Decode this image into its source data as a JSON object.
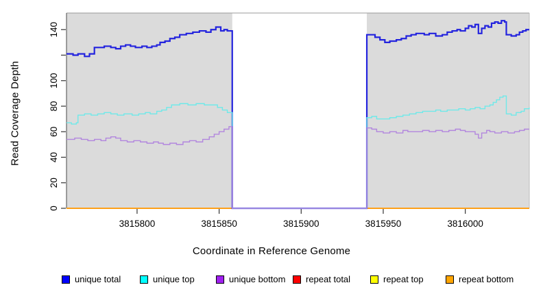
{
  "chart_data": {
    "type": "line",
    "step": true,
    "title": "",
    "xlabel": "Coordinate in Reference Genome",
    "ylabel": "Read Coverage Depth",
    "xlim": [
      3815757,
      3816039
    ],
    "ylim": [
      0,
      153
    ],
    "grid": false,
    "plot_background_shaded_color": "#DBDBDB",
    "gap_region_color": "#FFFFFF",
    "shaded_regions": [
      [
        3815757,
        3815858
      ],
      [
        3815940,
        3816039
      ]
    ],
    "gap_region": [
      3815858,
      3815940
    ],
    "x_ticks": [
      3815800,
      3815850,
      3815900,
      3815950,
      3816000
    ],
    "x_tick_labels": [
      "3815800",
      "3815850",
      "3815900",
      "3815950",
      "3816000"
    ],
    "y_ticks": [
      0,
      20,
      40,
      60,
      80,
      100,
      120,
      140
    ],
    "y_tick_labels": [
      "0",
      "20",
      "40",
      "60",
      "80",
      "100",
      "",
      "140"
    ],
    "legend_position": "bottom",
    "legend": [
      {
        "label": "unique total",
        "color": "#0000FF"
      },
      {
        "label": "unique top",
        "color": "#00FFFF"
      },
      {
        "label": "unique bottom",
        "color": "#A020F0"
      },
      {
        "label": "repeat total",
        "color": "#FF0000"
      },
      {
        "label": "repeat top",
        "color": "#FFFF00"
      },
      {
        "label": "repeat bottom",
        "color": "#FFA500"
      }
    ],
    "series": [
      {
        "name": "repeat total",
        "color": "#DE0000",
        "width": 1.2,
        "points": [
          [
            3815757,
            0
          ],
          [
            3816039,
            0
          ]
        ]
      },
      {
        "name": "repeat top",
        "color": "#F0F000",
        "width": 1.2,
        "points": [
          [
            3815757,
            0
          ],
          [
            3816039,
            0
          ]
        ]
      },
      {
        "name": "repeat bottom",
        "color": "#FFA018",
        "width": 2,
        "points": [
          [
            3815757,
            0
          ],
          [
            3816039,
            0
          ]
        ]
      },
      {
        "name": "unique total",
        "color": "#2323DE",
        "width": 2.2,
        "points": [
          [
            3815757,
            121
          ],
          [
            3815761,
            120
          ],
          [
            3815764,
            121
          ],
          [
            3815768,
            119
          ],
          [
            3815771,
            121
          ],
          [
            3815774,
            126
          ],
          [
            3815780,
            127
          ],
          [
            3815784,
            126
          ],
          [
            3815787,
            125
          ],
          [
            3815790,
            127
          ],
          [
            3815793,
            128
          ],
          [
            3815796,
            127
          ],
          [
            3815799,
            126
          ],
          [
            3815803,
            127
          ],
          [
            3815806,
            126
          ],
          [
            3815809,
            127
          ],
          [
            3815812,
            128
          ],
          [
            3815814,
            130
          ],
          [
            3815817,
            131
          ],
          [
            3815820,
            133
          ],
          [
            3815823,
            134
          ],
          [
            3815826,
            136
          ],
          [
            3815830,
            137
          ],
          [
            3815834,
            138
          ],
          [
            3815838,
            139
          ],
          [
            3815842,
            138
          ],
          [
            3815845,
            140
          ],
          [
            3815848,
            142
          ],
          [
            3815851,
            139
          ],
          [
            3815853,
            140
          ],
          [
            3815855,
            139
          ],
          [
            3815858,
            0
          ],
          [
            3815940,
            136
          ],
          [
            3815945,
            134
          ],
          [
            3815948,
            132
          ],
          [
            3815951,
            130
          ],
          [
            3815954,
            131
          ],
          [
            3815958,
            132
          ],
          [
            3815961,
            133
          ],
          [
            3815964,
            135
          ],
          [
            3815967,
            136
          ],
          [
            3815970,
            137
          ],
          [
            3815975,
            136
          ],
          [
            3815978,
            137
          ],
          [
            3815982,
            135
          ],
          [
            3815986,
            136
          ],
          [
            3815989,
            138
          ],
          [
            3815992,
            139
          ],
          [
            3815995,
            140
          ],
          [
            3815997,
            139
          ],
          [
            3816000,
            141
          ],
          [
            3816002,
            143
          ],
          [
            3816004,
            142
          ],
          [
            3816006,
            144
          ],
          [
            3816008,
            137
          ],
          [
            3816010,
            141
          ],
          [
            3816012,
            143
          ],
          [
            3816014,
            142
          ],
          [
            3816016,
            145
          ],
          [
            3816018,
            146
          ],
          [
            3816020,
            145
          ],
          [
            3816022,
            147
          ],
          [
            3816024,
            146
          ],
          [
            3816025,
            136
          ],
          [
            3816028,
            135
          ],
          [
            3816031,
            136
          ],
          [
            3816033,
            138
          ],
          [
            3816035,
            139
          ],
          [
            3816037,
            140
          ],
          [
            3816039,
            140
          ]
        ]
      },
      {
        "name": "unique top",
        "color": "#6FE9E9",
        "width": 1.4,
        "points": [
          [
            3815757,
            67
          ],
          [
            3815760,
            66
          ],
          [
            3815763,
            67
          ],
          [
            3815764,
            73
          ],
          [
            3815768,
            74
          ],
          [
            3815772,
            73
          ],
          [
            3815776,
            74
          ],
          [
            3815780,
            75
          ],
          [
            3815784,
            74
          ],
          [
            3815788,
            73
          ],
          [
            3815792,
            74
          ],
          [
            3815797,
            73
          ],
          [
            3815801,
            74
          ],
          [
            3815805,
            75
          ],
          [
            3815808,
            74
          ],
          [
            3815812,
            76
          ],
          [
            3815815,
            77
          ],
          [
            3815818,
            79
          ],
          [
            3815821,
            81
          ],
          [
            3815826,
            82
          ],
          [
            3815831,
            81
          ],
          [
            3815836,
            82
          ],
          [
            3815841,
            81
          ],
          [
            3815846,
            81
          ],
          [
            3815849,
            79
          ],
          [
            3815852,
            77
          ],
          [
            3815855,
            75
          ],
          [
            3815858,
            0
          ],
          [
            3815940,
            71
          ],
          [
            3815943,
            72
          ],
          [
            3815946,
            70
          ],
          [
            3815950,
            70
          ],
          [
            3815954,
            71
          ],
          [
            3815958,
            72
          ],
          [
            3815962,
            73
          ],
          [
            3815966,
            74
          ],
          [
            3815970,
            75
          ],
          [
            3815974,
            76
          ],
          [
            3815978,
            76
          ],
          [
            3815982,
            77
          ],
          [
            3815985,
            76
          ],
          [
            3815989,
            77
          ],
          [
            3815993,
            77
          ],
          [
            3815996,
            78
          ],
          [
            3816000,
            77
          ],
          [
            3816003,
            78
          ],
          [
            3816006,
            79
          ],
          [
            3816009,
            78
          ],
          [
            3816012,
            80
          ],
          [
            3816015,
            81
          ],
          [
            3816017,
            83
          ],
          [
            3816019,
            85
          ],
          [
            3816021,
            87
          ],
          [
            3816023,
            88
          ],
          [
            3816025,
            74
          ],
          [
            3816028,
            73
          ],
          [
            3816031,
            75
          ],
          [
            3816034,
            76
          ],
          [
            3816036,
            78
          ],
          [
            3816039,
            79
          ]
        ]
      },
      {
        "name": "unique bottom",
        "color": "#B286DE",
        "width": 1.4,
        "points": [
          [
            3815757,
            54
          ],
          [
            3815762,
            55
          ],
          [
            3815766,
            54
          ],
          [
            3815770,
            53
          ],
          [
            3815774,
            54
          ],
          [
            3815778,
            53
          ],
          [
            3815781,
            55
          ],
          [
            3815784,
            56
          ],
          [
            3815787,
            55
          ],
          [
            3815790,
            53
          ],
          [
            3815794,
            52
          ],
          [
            3815798,
            53
          ],
          [
            3815802,
            52
          ],
          [
            3815806,
            51
          ],
          [
            3815810,
            52
          ],
          [
            3815813,
            51
          ],
          [
            3815816,
            50
          ],
          [
            3815820,
            51
          ],
          [
            3815824,
            50
          ],
          [
            3815828,
            52
          ],
          [
            3815832,
            53
          ],
          [
            3815836,
            52
          ],
          [
            3815840,
            54
          ],
          [
            3815844,
            56
          ],
          [
            3815847,
            58
          ],
          [
            3815850,
            60
          ],
          [
            3815853,
            62
          ],
          [
            3815856,
            64
          ],
          [
            3815858,
            0
          ],
          [
            3815940,
            63
          ],
          [
            3815943,
            62
          ],
          [
            3815946,
            60
          ],
          [
            3815950,
            59
          ],
          [
            3815954,
            60
          ],
          [
            3815958,
            59
          ],
          [
            3815962,
            61
          ],
          [
            3815965,
            60
          ],
          [
            3815970,
            60
          ],
          [
            3815974,
            61
          ],
          [
            3815978,
            60
          ],
          [
            3815982,
            61
          ],
          [
            3815986,
            60
          ],
          [
            3815990,
            61
          ],
          [
            3815994,
            62
          ],
          [
            3815997,
            61
          ],
          [
            3816000,
            60
          ],
          [
            3816003,
            60
          ],
          [
            3816006,
            58
          ],
          [
            3816008,
            55
          ],
          [
            3816010,
            59
          ],
          [
            3816013,
            61
          ],
          [
            3816015,
            60
          ],
          [
            3816018,
            59
          ],
          [
            3816022,
            60
          ],
          [
            3816026,
            59
          ],
          [
            3816030,
            60
          ],
          [
            3816033,
            61
          ],
          [
            3816036,
            62
          ],
          [
            3816039,
            62
          ]
        ]
      }
    ]
  }
}
